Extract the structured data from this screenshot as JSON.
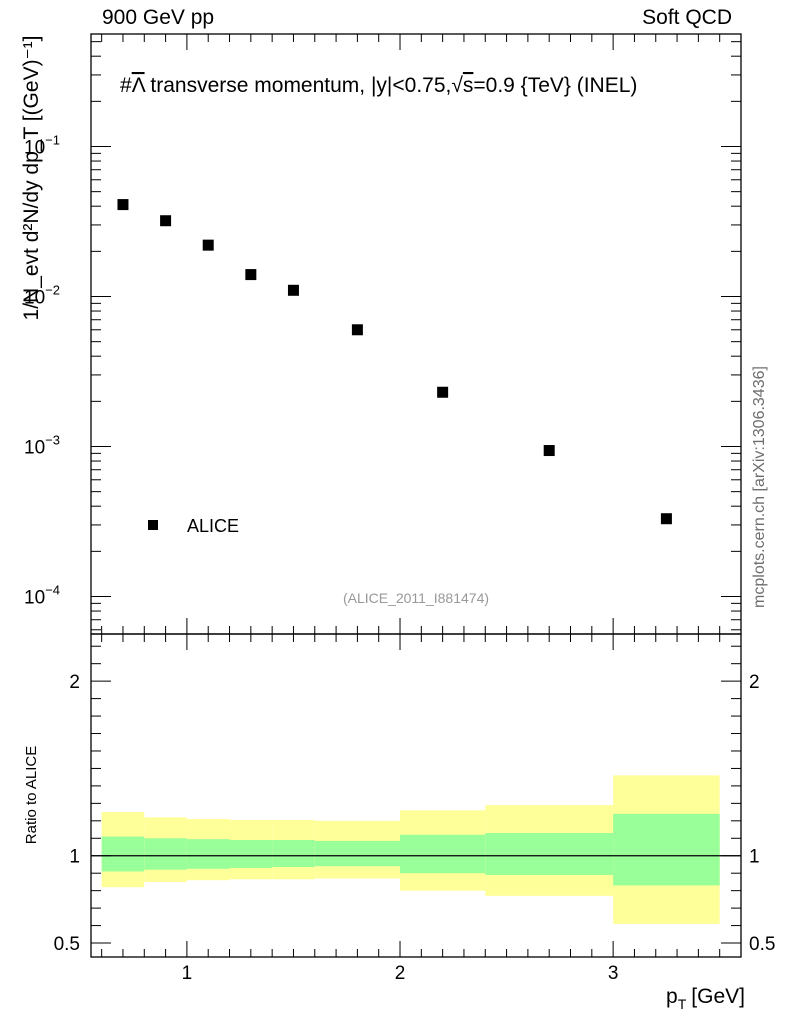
{
  "header": {
    "left": "900 GeV pp",
    "right": "Soft QCD"
  },
  "side_label": "mcplots.cern.ch [arXiv:1306.3436]",
  "analysis_id": "(ALICE_2011_I881474)",
  "chart_data": {
    "type": "scatter",
    "title_parts": {
      "prefix": "#",
      "lambda": "Λ",
      "mid": " transverse momentum, |y|<0.75,",
      "sqrt": "√",
      "s": "s",
      "suffix": "=0.9 {TeV} (INEL)"
    },
    "ylabel": "1/N_evt d²N/dy dp_T [(GeV)⁻¹]",
    "xlabel_main": "p",
    "xlabel_sub": "T",
    "xlabel_unit": "[GeV]",
    "xlim": [
      0.55,
      3.6
    ],
    "ylim_log10": [
      -4.25,
      -0.25
    ],
    "y_tick_labels": [
      {
        "base": "10",
        "exp": "−1",
        "log": -1
      },
      {
        "base": "10",
        "exp": "−2",
        "log": -2
      },
      {
        "base": "10",
        "exp": "−3",
        "log": -3
      },
      {
        "base": "10",
        "exp": "−4",
        "log": -4
      }
    ],
    "x_tick_labels": [
      "1",
      "2",
      "3"
    ],
    "series": [
      {
        "name": "ALICE",
        "x": [
          0.7,
          0.9,
          1.1,
          1.3,
          1.5,
          1.8,
          2.2,
          2.7,
          3.25
        ],
        "y": [
          0.041,
          0.032,
          0.022,
          0.014,
          0.011,
          0.006,
          0.0023,
          0.00094,
          0.00033
        ]
      }
    ],
    "legend": {
      "label": "ALICE",
      "position": "bottom-left"
    },
    "ratio": {
      "ylabel": "Ratio to ALICE",
      "ylim": [
        0.42,
        2.27
      ],
      "tick_labels": [
        {
          "label": "2",
          "value": 2
        },
        {
          "label": "1",
          "value": 1
        },
        {
          "label": "0.5",
          "value": 0.5
        }
      ],
      "bands": [
        {
          "x0": 0.6,
          "x1": 0.8,
          "stat_lo": 0.91,
          "stat_hi": 1.11,
          "tot_lo": 0.82,
          "tot_hi": 1.25
        },
        {
          "x0": 0.8,
          "x1": 1.0,
          "stat_lo": 0.92,
          "stat_hi": 1.1,
          "tot_lo": 0.85,
          "tot_hi": 1.22
        },
        {
          "x0": 1.0,
          "x1": 1.2,
          "stat_lo": 0.925,
          "stat_hi": 1.095,
          "tot_lo": 0.86,
          "tot_hi": 1.21
        },
        {
          "x0": 1.2,
          "x1": 1.4,
          "stat_lo": 0.93,
          "stat_hi": 1.09,
          "tot_lo": 0.865,
          "tot_hi": 1.205
        },
        {
          "x0": 1.4,
          "x1": 1.6,
          "stat_lo": 0.935,
          "stat_hi": 1.09,
          "tot_lo": 0.865,
          "tot_hi": 1.205
        },
        {
          "x0": 1.6,
          "x1": 2.0,
          "stat_lo": 0.94,
          "stat_hi": 1.085,
          "tot_lo": 0.87,
          "tot_hi": 1.2
        },
        {
          "x0": 2.0,
          "x1": 2.4,
          "stat_lo": 0.9,
          "stat_hi": 1.12,
          "tot_lo": 0.8,
          "tot_hi": 1.26
        },
        {
          "x0": 2.4,
          "x1": 3.0,
          "stat_lo": 0.89,
          "stat_hi": 1.13,
          "tot_lo": 0.77,
          "tot_hi": 1.29
        },
        {
          "x0": 3.0,
          "x1": 3.5,
          "stat_lo": 0.83,
          "stat_hi": 1.24,
          "tot_lo": 0.61,
          "tot_hi": 1.46
        }
      ]
    },
    "colors": {
      "stat_band": "#99ff99",
      "total_band": "#ffff99",
      "marker": "#000000",
      "frame": "#000000",
      "analysis_id": "#999999",
      "side_label": "#6e6e6e"
    }
  }
}
